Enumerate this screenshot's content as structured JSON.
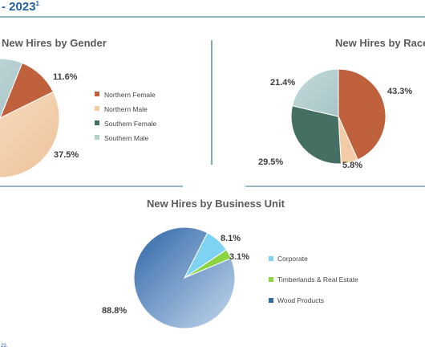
{
  "header": {
    "year_text": "- 2023",
    "footnote_mark": "1"
  },
  "footnote": {
    "text": "23."
  },
  "colors": {
    "rust": "#c0613e",
    "peach": "#f3cba6",
    "teal_green": "#456f62",
    "light_teal": "#b5cfd0",
    "blue": "#2f6aa7",
    "light_blue": "#7fd3f2",
    "lime": "#8cd43f",
    "title_gray": "#5a5a5a",
    "rule_blue": "#2d6f8f"
  },
  "chart_data": [
    {
      "type": "pie",
      "title": "New Hires by Gender",
      "categories": [
        "Northern Female",
        "Northern Male",
        "Southern Female",
        "Southern Male"
      ],
      "values": [
        11.6,
        37.5,
        13.6,
        37.3
      ],
      "data_labels": [
        "11.6%",
        "37.5%",
        "",
        ""
      ],
      "legend_placement": "right"
    },
    {
      "type": "pie",
      "title": "New Hires by Race",
      "categories": [
        "",
        "",
        "",
        ""
      ],
      "values": [
        43.3,
        5.8,
        29.5,
        21.4
      ],
      "data_labels": [
        "43.3%",
        "5.8%",
        "29.5%",
        "21.4%"
      ],
      "legend_placement": "right"
    },
    {
      "type": "pie",
      "title": "New Hires by Business Unit",
      "categories": [
        "Corporate",
        "Timberlands & Real Estate",
        "Wood Products"
      ],
      "values": [
        8.1,
        3.1,
        88.8
      ],
      "data_labels": [
        "8.1%",
        "3.1%",
        "88.8%"
      ],
      "legend_placement": "right"
    }
  ]
}
